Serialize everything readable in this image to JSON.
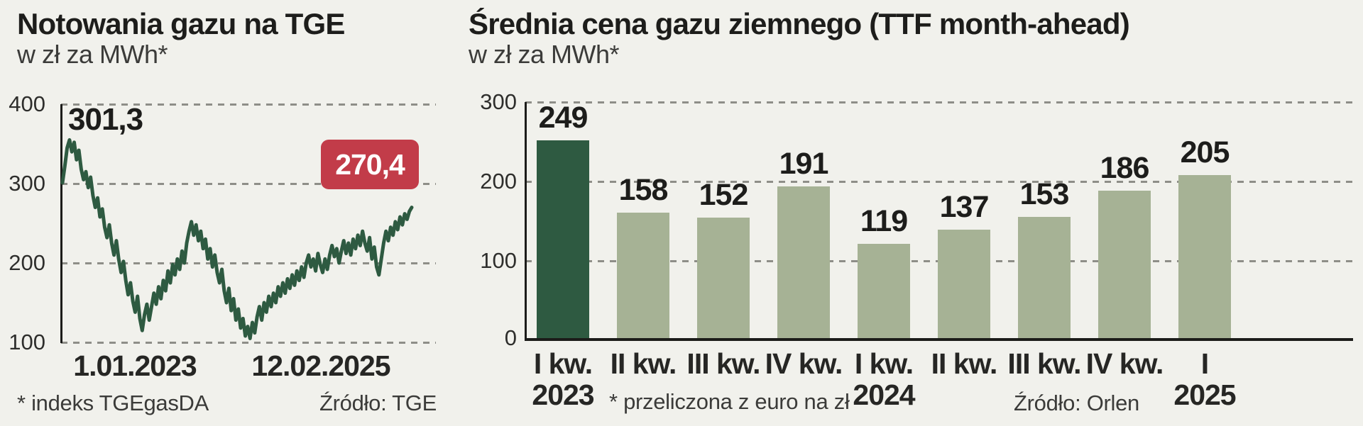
{
  "colors": {
    "background": "#f1f1ec",
    "dark_green": "#2e5a41",
    "sage_green": "#a6b295",
    "badge_red": "#c23c49",
    "grid_gray": "#8e8e88",
    "axis_black": "#1c1c1a"
  },
  "left_chart": {
    "title": "Notowania gazu na TGE",
    "subtitle": "w zł za MWh*",
    "start_value_label": "301,3",
    "end_value_badge": "270,4",
    "y_ticks": [
      "400",
      "300",
      "200",
      "100"
    ],
    "x_labels": [
      "1.01.2023",
      "12.02.2025"
    ],
    "footnote": "* indeks TGEgasDA",
    "source": "Źródło: TGE"
  },
  "right_chart": {
    "title": "Średnia cena gazu ziemnego (TTF month-ahead)",
    "subtitle": "w zł za MWh*",
    "y_ticks": [
      "300",
      "200",
      "100",
      "0"
    ],
    "axis_labels": [
      {
        "q": "I kw.",
        "year": "2023"
      },
      {
        "q": "II kw.",
        "year": ""
      },
      {
        "q": "III kw.",
        "year": ""
      },
      {
        "q": "IV kw.",
        "year": ""
      },
      {
        "q": "I kw.",
        "year": "2024"
      },
      {
        "q": "II kw.",
        "year": ""
      },
      {
        "q": "III kw.",
        "year": ""
      },
      {
        "q": "IV kw.",
        "year": ""
      },
      {
        "q": "I",
        "year": "2025"
      }
    ],
    "footnote": "* przeliczona z euro na zł",
    "source": "Źródło: Orlen"
  },
  "chart_data": [
    {
      "type": "line",
      "title": "Notowania gazu na TGE",
      "ylabel": "zł za MWh",
      "index_name": "TGEgasDA",
      "x_start": "1.01.2023",
      "x_end": "12.02.2025",
      "first_value": 301.3,
      "last_value": 270.4,
      "ylim": [
        100,
        400
      ],
      "y_ticks": [
        400,
        300,
        200,
        100
      ],
      "grid": true,
      "approximate": true,
      "values": [
        301,
        322,
        345,
        355,
        340,
        352,
        330,
        342,
        318,
        305,
        315,
        295,
        308,
        285,
        270,
        282,
        258,
        268,
        245,
        232,
        248,
        225,
        210,
        228,
        205,
        188,
        202,
        178,
        160,
        175,
        152,
        138,
        158,
        130,
        115,
        135,
        148,
        128,
        145,
        162,
        148,
        170,
        155,
        178,
        165,
        190,
        175,
        198,
        185,
        205,
        192,
        215,
        200,
        225,
        240,
        252,
        235,
        248,
        228,
        240,
        218,
        230,
        205,
        218,
        195,
        210,
        188,
        175,
        192,
        165,
        150,
        168,
        140,
        155,
        128,
        142,
        118,
        130,
        108,
        120,
        105,
        125,
        112,
        132,
        145,
        128,
        150,
        138,
        158,
        145,
        162,
        150,
        170,
        158,
        175,
        162,
        180,
        168,
        185,
        172,
        190,
        178,
        195,
        182,
        200,
        210,
        195,
        205,
        190,
        212,
        198,
        188,
        205,
        192,
        210,
        222,
        208,
        218,
        200,
        215,
        228,
        212,
        225,
        210,
        230,
        218,
        235,
        222,
        240,
        225,
        215,
        232,
        205,
        220,
        195,
        185,
        205,
        225,
        240,
        228,
        245,
        235,
        252,
        242,
        258,
        248,
        262,
        255,
        265,
        270
      ]
    },
    {
      "type": "bar",
      "title": "Średnia cena gazu ziemnego (TTF month-ahead)",
      "ylabel": "zł za MWh",
      "categories": [
        "I kw. 2023",
        "II kw.",
        "III kw.",
        "IV kw.",
        "I kw. 2024",
        "II kw.",
        "III kw.",
        "IV kw.",
        "I 2025"
      ],
      "values": [
        249,
        158,
        152,
        191,
        119,
        137,
        153,
        186,
        205
      ],
      "highlight_index": 0,
      "ylim": [
        0,
        300
      ],
      "y_ticks": [
        300,
        200,
        100,
        0
      ],
      "grid": true,
      "legend": false
    }
  ]
}
